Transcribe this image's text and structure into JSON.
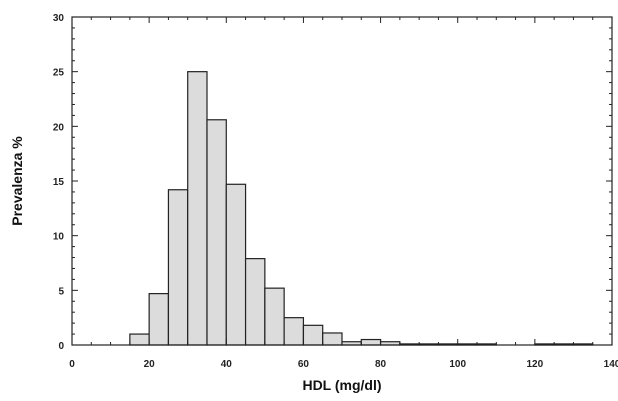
{
  "chart_data": {
    "type": "bar",
    "subtype": "histogram",
    "xlabel": "HDL (mg/dl)",
    "ylabel": "Prevalenza %",
    "xlim": [
      0,
      140
    ],
    "ylim": [
      0,
      30
    ],
    "x_ticks": [
      0,
      20,
      40,
      60,
      80,
      100,
      120,
      140
    ],
    "y_ticks": [
      0,
      5,
      10,
      15,
      20,
      25,
      30
    ],
    "bin_width": 5,
    "bin_starts": [
      15,
      20,
      25,
      30,
      35,
      40,
      45,
      50,
      55,
      60,
      65,
      70,
      75,
      80,
      85,
      90,
      95,
      100,
      105,
      120,
      125,
      130
    ],
    "values": [
      1.0,
      4.7,
      14.2,
      25.0,
      20.6,
      14.7,
      7.9,
      5.2,
      2.5,
      1.8,
      1.1,
      0.3,
      0.5,
      0.3,
      0.1,
      0.1,
      0.1,
      0.1,
      0.1,
      0.1,
      0.1,
      0.1
    ],
    "grid": false,
    "legend": "none",
    "colors": {
      "bar_fill": "#dcdcdc",
      "bar_edge": "#222222",
      "axis": "#222222"
    }
  }
}
